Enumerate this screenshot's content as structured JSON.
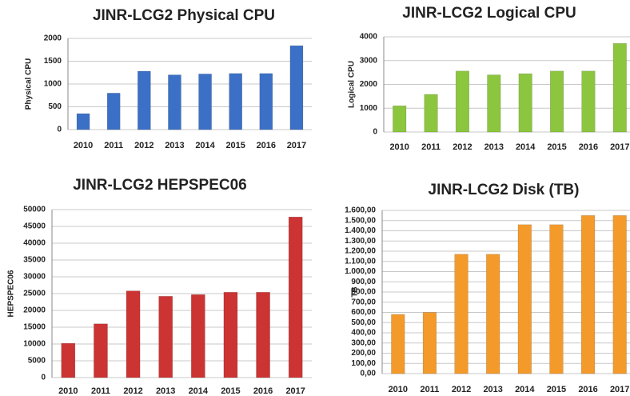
{
  "chart_data": [
    {
      "type": "bar",
      "title": "JINR-LCG2 Physical CPU",
      "y_label": "Physical CPU",
      "categories": [
        "2010",
        "2011",
        "2012",
        "2013",
        "2014",
        "2015",
        "2016",
        "2017"
      ],
      "values": [
        350,
        800,
        1280,
        1200,
        1220,
        1230,
        1230,
        1840
      ],
      "color": "#3b70c6",
      "ylim": [
        0,
        2000
      ],
      "yticks": [
        0,
        500,
        1000,
        1500,
        2000
      ],
      "grid": true
    },
    {
      "type": "bar",
      "title": "JINR-LCG2 Logical CPU",
      "y_label": "Logical CPU",
      "categories": [
        "2010",
        "2011",
        "2012",
        "2013",
        "2014",
        "2015",
        "2016",
        "2017"
      ],
      "values": [
        1100,
        1580,
        2560,
        2400,
        2450,
        2560,
        2560,
        3720
      ],
      "color": "#8cc63f",
      "ylim": [
        0,
        4000
      ],
      "yticks": [
        0,
        1000,
        2000,
        3000,
        4000
      ],
      "grid": true
    },
    {
      "type": "bar",
      "title": "JINR-LCG2 HEPSPEC06",
      "y_label": "HEPSPEC06",
      "categories": [
        "2010",
        "2011",
        "2012",
        "2013",
        "2014",
        "2015",
        "2016",
        "2017"
      ],
      "values": [
        10200,
        16000,
        25800,
        24200,
        24700,
        25400,
        25400,
        47800
      ],
      "color": "#cc3333",
      "ylim": [
        0,
        50000
      ],
      "yticks": [
        0,
        5000,
        10000,
        15000,
        20000,
        25000,
        30000,
        35000,
        40000,
        45000,
        50000
      ],
      "grid": true
    },
    {
      "type": "bar",
      "title": "JINR-LCG2 Disk (TB)",
      "y_label": "TB",
      "categories": [
        "2010",
        "2011",
        "2012",
        "2013",
        "2014",
        "2015",
        "2016",
        "2017"
      ],
      "values": [
        580,
        600,
        1170,
        1170,
        1460,
        1460,
        1550,
        1550
      ],
      "color": "#f39a2b",
      "ylim": [
        0,
        1600
      ],
      "yticks": [
        {
          "value": 0,
          "label": "0,00"
        },
        {
          "value": 100,
          "label": "100,00"
        },
        {
          "value": 200,
          "label": "200,00"
        },
        {
          "value": 300,
          "label": "300,00"
        },
        {
          "value": 400,
          "label": "400,00"
        },
        {
          "value": 500,
          "label": "500,00"
        },
        {
          "value": 600,
          "label": "600,00"
        },
        {
          "value": 700,
          "label": "700,00"
        },
        {
          "value": 800,
          "label": "800,00"
        },
        {
          "value": 900,
          "label": "900,00"
        },
        {
          "value": 1000,
          "label": "1.000,00"
        },
        {
          "value": 1100,
          "label": "1.100,00"
        },
        {
          "value": 1200,
          "label": "1.200,00"
        },
        {
          "value": 1300,
          "label": "1.300,00"
        },
        {
          "value": 1400,
          "label": "1.400,00"
        },
        {
          "value": 1500,
          "label": "1.500,00"
        },
        {
          "value": 1600,
          "label": "1.600,00"
        }
      ],
      "grid": true
    }
  ]
}
